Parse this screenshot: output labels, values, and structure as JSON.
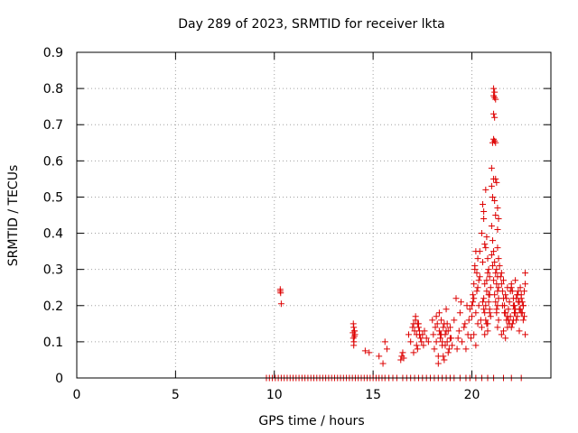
{
  "chart_data": {
    "type": "scatter",
    "title": "Day 289 of 2023, SRMTID for receiver lkta",
    "xlabel": "GPS time / hours",
    "ylabel": "SRMTID / TECUs",
    "xlim": [
      0,
      24
    ],
    "ylim": [
      0,
      0.9
    ],
    "xticks": [
      0,
      5,
      10,
      15,
      20
    ],
    "yticks": [
      0,
      0.1,
      0.2,
      0.3,
      0.4,
      0.5,
      0.6,
      0.7,
      0.8,
      0.9
    ],
    "ytick_labels": [
      "0",
      "0.1",
      "0.2",
      "0.3",
      "0.4",
      "0.5",
      "0.6",
      "0.7",
      "0.8",
      "0.9"
    ],
    "grid": true,
    "marker": "+",
    "series": [
      {
        "name": "SRMTID",
        "color": "#dd0000",
        "x": [
          9.6,
          9.75,
          9.9,
          10.05,
          10.2,
          10.35,
          10.5,
          10.65,
          10.8,
          10.95,
          11.1,
          11.25,
          11.4,
          11.55,
          11.7,
          11.85,
          12.0,
          12.15,
          12.3,
          12.45,
          12.6,
          12.75,
          12.9,
          13.05,
          13.2,
          13.35,
          13.5,
          13.65,
          13.8,
          13.95,
          14.1,
          14.25,
          14.4,
          14.55,
          14.7,
          14.85,
          15.0,
          15.15,
          15.3,
          15.45,
          15.6,
          15.8,
          16.0,
          16.2,
          16.5,
          16.7,
          16.9,
          17.1,
          17.3,
          17.5,
          17.7,
          17.9,
          18.1,
          18.3,
          18.5,
          18.7,
          18.9,
          19.1,
          19.4,
          19.7,
          19.9,
          20.2,
          20.5,
          20.8,
          21.1,
          21.6,
          22.0,
          22.5,
          10.3,
          10.3,
          10.32,
          10.35,
          14.0,
          14.02,
          14.05,
          14.08,
          14.0,
          14.03,
          14.06,
          13.98,
          14.02,
          14.05,
          14.6,
          14.8,
          15.3,
          15.5,
          15.6,
          15.7,
          16.4,
          16.45,
          16.5,
          16.55,
          16.8,
          16.9,
          17.0,
          17.05,
          17.1,
          17.15,
          17.2,
          17.25,
          17.3,
          17.35,
          17.4,
          17.45,
          17.5,
          17.55,
          17.6,
          17.7,
          17.8,
          17.15,
          17.25,
          17.35,
          17.05,
          17.2,
          17.3,
          18.0,
          18.05,
          18.1,
          18.15,
          18.2,
          18.25,
          18.3,
          18.35,
          18.4,
          18.45,
          18.5,
          18.55,
          18.6,
          18.65,
          18.7,
          18.75,
          18.8,
          18.85,
          18.9,
          18.95,
          19.0,
          18.2,
          18.4,
          18.6,
          18.8,
          18.3,
          18.5,
          18.7,
          18.9,
          18.35,
          18.55,
          18.75,
          18.45,
          18.65,
          19.1,
          19.2,
          19.3,
          19.35,
          19.4,
          19.5,
          19.6,
          19.7,
          19.75,
          19.8,
          19.85,
          19.9,
          19.95,
          19.25,
          19.45,
          19.65,
          20.0,
          20.05,
          20.1,
          20.15,
          20.2,
          20.25,
          20.3,
          20.35,
          20.0,
          20.1,
          20.2,
          20.3,
          20.05,
          20.15,
          20.25,
          20.35,
          20.4,
          20.45,
          20.1,
          20.2,
          20.3,
          20.4,
          20.5,
          20.55,
          20.6,
          20.65,
          20.7,
          20.75,
          20.8,
          20.85,
          20.9,
          20.95,
          20.6,
          20.65,
          20.7,
          20.75,
          20.8,
          20.85,
          20.9,
          20.95,
          20.55,
          20.65,
          20.75,
          20.85,
          20.6,
          20.7,
          20.8,
          20.9,
          20.5,
          20.6,
          20.7,
          20.8,
          20.9,
          20.55,
          20.65,
          20.75,
          21.0,
          21.05,
          21.1,
          21.15,
          21.2,
          21.0,
          21.05,
          21.1,
          21.15,
          21.2,
          21.1,
          21.15,
          21.2,
          21.1,
          21.15,
          21.1,
          21.15,
          21.2,
          21.25,
          21.0,
          21.05,
          21.1,
          21.15,
          21.2,
          21.25,
          21.3,
          21.35,
          21.3,
          21.35,
          21.3,
          21.25,
          21.3,
          21.35,
          21.3,
          21.25,
          21.35,
          21.3,
          21.25,
          21.2,
          21.15,
          21.1,
          21.05,
          21.0,
          21.3,
          21.35,
          21.4,
          21.45,
          21.5,
          21.55,
          21.6,
          21.65,
          21.7,
          21.75,
          21.8,
          21.85,
          21.9,
          21.95,
          21.5,
          21.6,
          21.7,
          21.8,
          21.9,
          21.55,
          21.65,
          21.75,
          21.85,
          21.95,
          21.5,
          21.6,
          21.7,
          21.8,
          22.0,
          22.05,
          22.1,
          22.15,
          22.2,
          22.25,
          22.3,
          22.35,
          22.4,
          22.45,
          22.5,
          22.55,
          22.6,
          22.65,
          22.7,
          22.0,
          22.1,
          22.2,
          22.3,
          22.4,
          22.5,
          22.6,
          22.7,
          22.05,
          22.15,
          22.25,
          22.35,
          22.45,
          22.55,
          22.65,
          22.0,
          22.2,
          22.4,
          22.6,
          22.1,
          22.3,
          22.5,
          22.7
        ],
        "y": [
          0,
          0,
          0,
          0,
          0,
          0,
          0,
          0,
          0,
          0,
          0,
          0,
          0,
          0,
          0,
          0,
          0,
          0,
          0,
          0,
          0,
          0,
          0,
          0,
          0,
          0,
          0,
          0,
          0,
          0,
          0,
          0,
          0,
          0,
          0,
          0,
          0,
          0,
          0,
          0,
          0,
          0,
          0,
          0,
          0,
          0,
          0,
          0,
          0,
          0,
          0,
          0,
          0,
          0,
          0,
          0,
          0,
          0,
          0,
          0,
          0,
          0,
          0,
          0,
          0,
          0,
          0,
          0,
          0.245,
          0.24,
          0.235,
          0.205,
          0.15,
          0.14,
          0.13,
          0.12,
          0.11,
          0.1,
          0.13,
          0.125,
          0.09,
          0.115,
          0.075,
          0.07,
          0.06,
          0.04,
          0.1,
          0.08,
          0.05,
          0.06,
          0.07,
          0.055,
          0.12,
          0.1,
          0.14,
          0.15,
          0.13,
          0.17,
          0.12,
          0.15,
          0.14,
          0.13,
          0.11,
          0.1,
          0.12,
          0.09,
          0.13,
          0.11,
          0.1,
          0.16,
          0.08,
          0.12,
          0.07,
          0.09,
          0.15,
          0.16,
          0.12,
          0.08,
          0.14,
          0.1,
          0.15,
          0.06,
          0.13,
          0.11,
          0.16,
          0.09,
          0.14,
          0.05,
          0.12,
          0.19,
          0.1,
          0.13,
          0.08,
          0.14,
          0.11,
          0.09,
          0.17,
          0.12,
          0.15,
          0.07,
          0.04,
          0.1,
          0.13,
          0.11,
          0.18,
          0.06,
          0.15,
          0.12,
          0.09,
          0.16,
          0.22,
          0.11,
          0.13,
          0.18,
          0.1,
          0.14,
          0.08,
          0.2,
          0.12,
          0.16,
          0.19,
          0.11,
          0.08,
          0.21,
          0.15,
          0.2,
          0.23,
          0.26,
          0.3,
          0.35,
          0.29,
          0.33,
          0.27,
          0.17,
          0.22,
          0.18,
          0.25,
          0.21,
          0.31,
          0.24,
          0.2,
          0.35,
          0.16,
          0.12,
          0.09,
          0.15,
          0.28,
          0.4,
          0.48,
          0.44,
          0.37,
          0.52,
          0.39,
          0.33,
          0.3,
          0.28,
          0.25,
          0.22,
          0.18,
          0.2,
          0.27,
          0.15,
          0.23,
          0.19,
          0.17,
          0.32,
          0.26,
          0.24,
          0.21,
          0.46,
          0.36,
          0.29,
          0.23,
          0.14,
          0.19,
          0.16,
          0.13,
          0.18,
          0.21,
          0.12,
          0.15,
          0.58,
          0.65,
          0.66,
          0.655,
          0.65,
          0.53,
          0.5,
          0.55,
          0.49,
          0.45,
          0.78,
          0.775,
          0.77,
          0.73,
          0.72,
          0.8,
          0.79,
          0.55,
          0.54,
          0.42,
          0.38,
          0.35,
          0.32,
          0.29,
          0.26,
          0.24,
          0.22,
          0.47,
          0.44,
          0.41,
          0.3,
          0.28,
          0.25,
          0.2,
          0.18,
          0.16,
          0.14,
          0.19,
          0.21,
          0.23,
          0.27,
          0.31,
          0.34,
          0.36,
          0.33,
          0.31,
          0.28,
          0.26,
          0.24,
          0.22,
          0.2,
          0.18,
          0.16,
          0.14,
          0.19,
          0.21,
          0.17,
          0.29,
          0.27,
          0.23,
          0.25,
          0.15,
          0.2,
          0.18,
          0.22,
          0.16,
          0.24,
          0.12,
          0.13,
          0.11,
          0.17,
          0.26,
          0.24,
          0.22,
          0.2,
          0.18,
          0.16,
          0.23,
          0.21,
          0.19,
          0.25,
          0.22,
          0.18,
          0.2,
          0.24,
          0.29,
          0.14,
          0.16,
          0.19,
          0.17,
          0.21,
          0.23,
          0.2,
          0.26,
          0.15,
          0.18,
          0.22,
          0.24,
          0.19,
          0.21,
          0.17,
          0.25,
          0.27,
          0.13,
          0.16,
          0.2,
          0.23,
          0.18,
          0.12
        ]
      }
    ]
  }
}
